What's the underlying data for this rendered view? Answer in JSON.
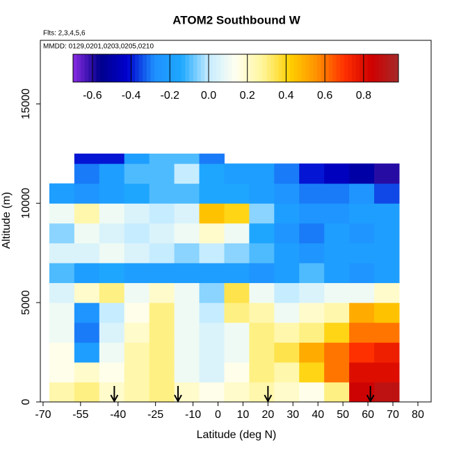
{
  "chart_data": {
    "type": "heatmap",
    "title": "ATOM2 Southbound W",
    "subtitle": "Flts: 2,3,4,5,6",
    "annotation": "MMDD: 0129,0201,0203,0205,0210",
    "x_label": "Latitude (deg N)",
    "y_label": "Altitude (m)",
    "xlim": [
      -71.1,
      85.3
    ],
    "ylim": [
      0,
      18200
    ],
    "xticks": [
      -70,
      -55,
      -40,
      -25,
      -10,
      0,
      10,
      20,
      30,
      40,
      50,
      60,
      70,
      80
    ],
    "yticks": [
      0,
      5000,
      10000,
      15000
    ],
    "x_edges": [
      -67.5,
      -57.5,
      -47.5,
      -37.5,
      -27.5,
      -17.5,
      -7.5,
      2.5,
      12.5,
      22.5,
      32.5,
      42.5,
      52.5,
      62.5,
      72.5
    ],
    "y_edges": [
      0,
      1000,
      2000,
      3000,
      4000,
      5000,
      6000,
      7000,
      8000,
      9000,
      10000,
      11000,
      12000,
      12500
    ],
    "z": [
      [
        0.25,
        0.3,
        0.2,
        0.25,
        0.3,
        0.2,
        0.15,
        0.2,
        0.25,
        0.2,
        0.15,
        0.3,
        0.85,
        0.9
      ],
      [
        0.15,
        0.2,
        0.15,
        0.25,
        0.3,
        0.1,
        0.05,
        0.15,
        0.3,
        0.25,
        0.4,
        0.6,
        0.8,
        0.8
      ],
      [
        0.15,
        -0.2,
        0.1,
        0.25,
        0.3,
        0.1,
        0.05,
        0.1,
        0.3,
        0.35,
        0.5,
        0.6,
        0.7,
        0.75
      ],
      [
        0.1,
        -0.3,
        0.05,
        0.2,
        0.3,
        0.1,
        0.05,
        0.1,
        0.3,
        0.25,
        0.3,
        0.4,
        0.6,
        0.6
      ],
      [
        0.1,
        -0.25,
        0.0,
        0.15,
        0.3,
        0.1,
        0.0,
        0.3,
        0.25,
        0.1,
        0.2,
        0.25,
        0.5,
        0.45
      ],
      [
        0.05,
        0.2,
        0.3,
        0.1,
        0.2,
        0.1,
        -0.05,
        0.35,
        0.1,
        0.0,
        0.05,
        0.1,
        0.1,
        0.2
      ],
      [
        -0.1,
        -0.2,
        -0.15,
        -0.2,
        -0.2,
        -0.2,
        -0.2,
        -0.2,
        -0.25,
        -0.2,
        -0.1,
        -0.2,
        -0.25,
        -0.2
      ],
      [
        0.05,
        0.05,
        0.1,
        0.05,
        0.0,
        -0.05,
        0.0,
        -0.05,
        -0.1,
        -0.2,
        -0.25,
        -0.2,
        -0.2,
        -0.2
      ],
      [
        -0.05,
        0.1,
        0.05,
        0.0,
        0.05,
        0.1,
        0.2,
        0.1,
        -0.15,
        -0.25,
        -0.3,
        -0.2,
        -0.25,
        -0.2
      ],
      [
        0.1,
        0.25,
        0.1,
        0.05,
        0.0,
        0.05,
        0.45,
        0.4,
        -0.05,
        -0.2,
        -0.25,
        -0.25,
        -0.2,
        -0.2
      ],
      [
        -0.2,
        -0.25,
        -0.2,
        -0.15,
        -0.1,
        -0.1,
        -0.15,
        -0.15,
        -0.2,
        -0.25,
        -0.3,
        -0.3,
        -0.25,
        -0.35
      ],
      [
        null,
        -0.3,
        -0.2,
        -0.1,
        -0.1,
        0.0,
        -0.15,
        -0.2,
        -0.2,
        -0.3,
        -0.4,
        -0.45,
        -0.5,
        -0.6
      ],
      [
        null,
        -0.4,
        -0.4,
        -0.2,
        -0.1,
        -0.1,
        -0.3,
        null,
        null,
        null,
        null,
        null,
        null,
        null
      ]
    ],
    "clim": [
      -0.7,
      0.98
    ],
    "cticks": [
      -0.6,
      -0.4,
      -0.2,
      {
        "value": 0,
        "label": "0.0"
      },
      0.2,
      0.4,
      0.6,
      0.8
    ],
    "colorscale": [
      "#8a2be2",
      "#00008b",
      "#0000cd",
      "#1e90ff",
      "#1ea8ff",
      "#c6ecff",
      "#fffff0",
      "#fff59a",
      "#ffd000",
      "#ff9000",
      "#ff3000",
      "#d00000",
      "#a52a2a"
    ],
    "arrows": [
      -41.5,
      -16,
      20,
      61
    ]
  }
}
